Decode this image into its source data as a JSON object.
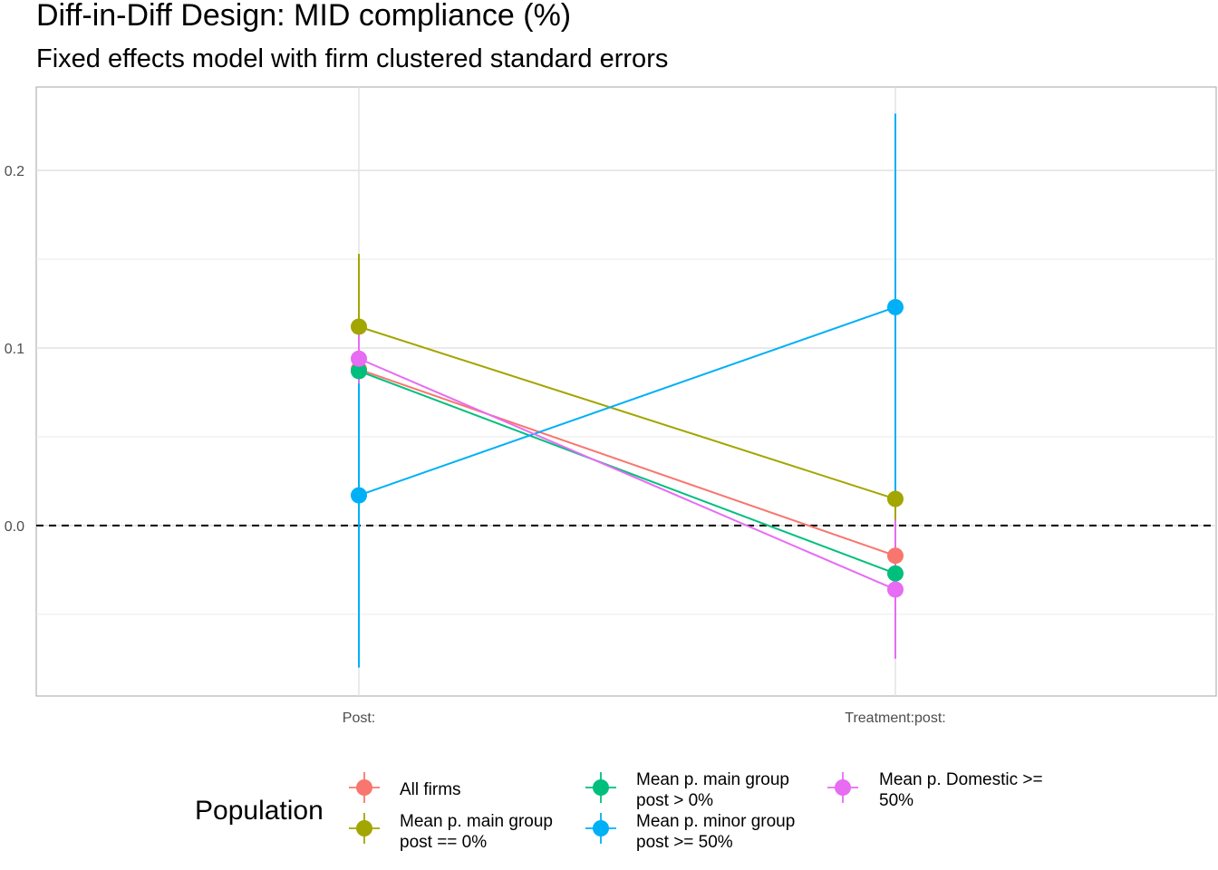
{
  "chart_data": {
    "type": "scatter",
    "title": "Diff-in-Diff Design: MID compliance (%)",
    "subtitle": "Fixed effects model with firm clustered standard errors",
    "xlabel": "",
    "ylabel": "",
    "categories": [
      "Post:",
      "Treatment:post:"
    ],
    "ylim": [
      -0.096,
      0.247
    ],
    "y_ticks": [
      0.0,
      0.1,
      0.2
    ],
    "y_tick_labels": [
      "0.0",
      "0.1",
      "0.2"
    ],
    "reference_line": {
      "y": 0,
      "style": "dashed",
      "color": "#000000"
    },
    "grid": true,
    "legend": {
      "title": "Population",
      "position": "bottom",
      "entries": [
        {
          "label_lines": [
            "All firms"
          ],
          "color": "#F8766D"
        },
        {
          "label_lines": [
            "Mean p. main group",
            "post == 0%"
          ],
          "color": "#A3A500"
        },
        {
          "label_lines": [
            "Mean p. main group",
            "post > 0%"
          ],
          "color": "#00BF7D"
        },
        {
          "label_lines": [
            "Mean p. minor group",
            "post >= 50%"
          ],
          "color": "#00B0F6"
        },
        {
          "label_lines": [
            "Mean p. Domestic >=",
            "50%"
          ],
          "color": "#E76BF3"
        }
      ]
    },
    "series": [
      {
        "name": "All firms",
        "color": "#F8766D",
        "estimates": [
          0.088,
          -0.017
        ],
        "ci_low": [
          0.083,
          -0.023
        ],
        "ci_high": [
          0.093,
          -0.011
        ]
      },
      {
        "name": "Mean p. main group post == 0%",
        "color": "#A3A500",
        "estimates": [
          0.112,
          0.015
        ],
        "ci_low": [
          0.071,
          -0.001
        ],
        "ci_high": [
          0.153,
          0.031
        ]
      },
      {
        "name": "Mean p. main group post > 0%",
        "color": "#00BF7D",
        "estimates": [
          0.087,
          -0.027
        ],
        "ci_low": [
          0.082,
          -0.032
        ],
        "ci_high": [
          0.092,
          -0.022
        ]
      },
      {
        "name": "Mean p. minor group post >= 50%",
        "color": "#00B0F6",
        "estimates": [
          0.017,
          0.123
        ],
        "ci_low": [
          -0.08,
          0.016
        ],
        "ci_high": [
          0.114,
          0.232
        ]
      },
      {
        "name": "Mean p. Domestic >= 50%",
        "color": "#E76BF3",
        "estimates": [
          0.094,
          -0.036
        ],
        "ci_low": [
          0.08,
          -0.075
        ],
        "ci_high": [
          0.108,
          0.003
        ]
      }
    ]
  }
}
